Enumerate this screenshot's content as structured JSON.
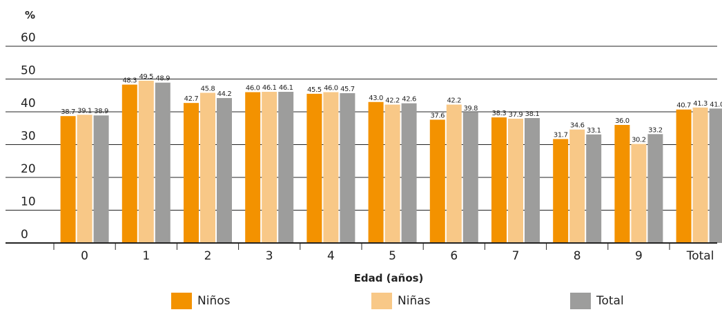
{
  "chart_data": {
    "type": "bar",
    "ylabel": "%",
    "xlabel": "Edad (años)",
    "ylim": [
      0,
      60
    ],
    "yticks": [
      0,
      10,
      20,
      30,
      40,
      50,
      60
    ],
    "categories": [
      "0",
      "1",
      "2",
      "3",
      "4",
      "5",
      "6",
      "7",
      "8",
      "9",
      "Total"
    ],
    "series": [
      {
        "name": "Niños",
        "color": "#f39200",
        "values": [
          38.7,
          48.3,
          42.7,
          46.0,
          45.5,
          43.0,
          37.6,
          38.3,
          31.7,
          36.0,
          40.7
        ]
      },
      {
        "name": "Niñas",
        "color": "#f8c887",
        "values": [
          39.1,
          49.5,
          45.8,
          46.1,
          46.0,
          42.2,
          42.2,
          37.9,
          34.6,
          30.2,
          41.3
        ]
      },
      {
        "name": "Total",
        "color": "#9d9d9c",
        "values": [
          38.9,
          48.9,
          44.2,
          46.1,
          45.7,
          42.6,
          39.8,
          38.1,
          33.1,
          33.2,
          41.0
        ]
      }
    ],
    "grid": true,
    "legend": "bottom"
  }
}
